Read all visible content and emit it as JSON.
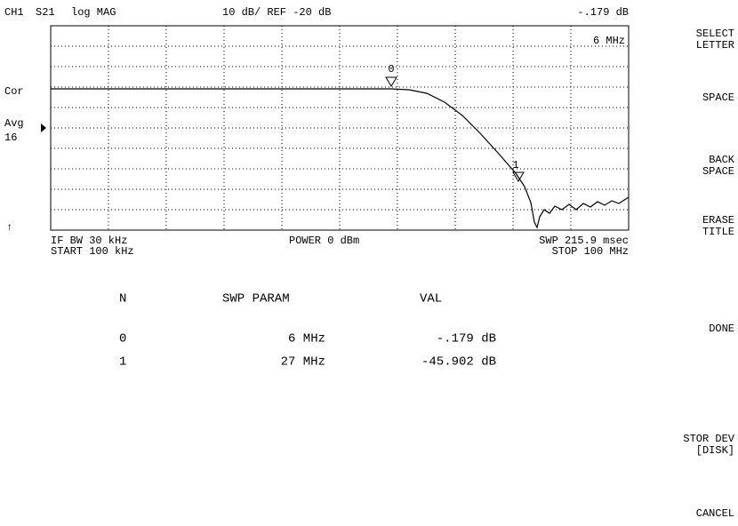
{
  "header": {
    "channel": "CH1",
    "parameter": "S21",
    "format": "log MAG",
    "scale": "10 dB/ REF -20 dB",
    "marker_value": "-.179 dB"
  },
  "marker_stimulus": "6 MHz",
  "left_annotations": [
    "Cor",
    "Avg",
    "16",
    "↑"
  ],
  "markers": [
    "0",
    "1"
  ],
  "footer": {
    "if_bw": "IF BW 30 kHz",
    "start": "START 100 kHz",
    "power": "POWER 0 dBm",
    "sweep": "SWP 215.9 msec",
    "stop": "STOP 100 MHz"
  },
  "table": {
    "headers": [
      "N",
      "SWP PARAM",
      "VAL"
    ],
    "rows": [
      [
        "0",
        "6 MHz",
        "-.179 dB"
      ],
      [
        "1",
        "27 MHz",
        "-45.902 dB"
      ]
    ]
  },
  "softkeys": [
    [
      "SELECT",
      "LETTER"
    ],
    [
      "SPACE"
    ],
    [
      "BACK",
      "SPACE"
    ],
    [
      "ERASE",
      "TITLE"
    ],
    [
      "DONE"
    ],
    [
      "STOR DEV",
      "[DISK]"
    ],
    [
      "CANCEL"
    ]
  ]
}
